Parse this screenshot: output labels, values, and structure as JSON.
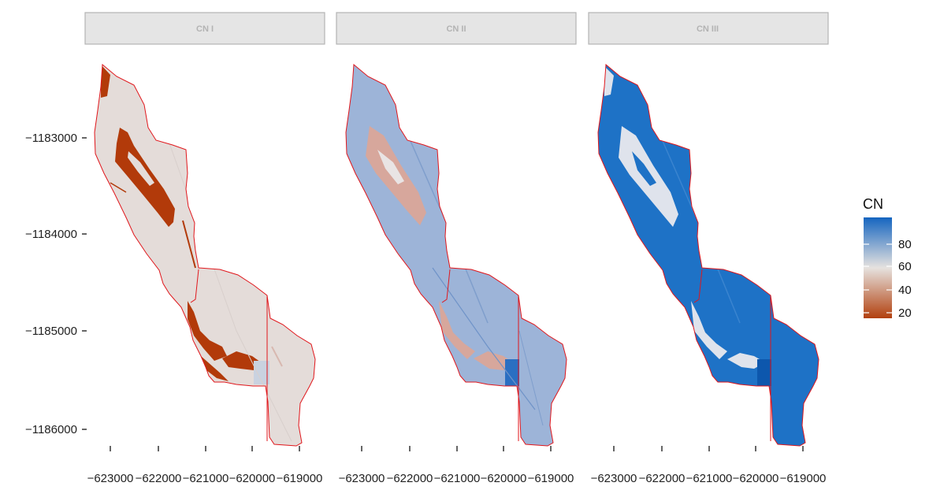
{
  "panels": [
    {
      "key": "cn1",
      "title": "CN I"
    },
    {
      "key": "cn2",
      "title": "CN II"
    },
    {
      "key": "cn3",
      "title": "CN III"
    }
  ],
  "y_axis_ticks": [
    "−1183000",
    "−1184000",
    "−1185000",
    "−1186000"
  ],
  "x_axis_ticks": [
    "−623000",
    "−622000",
    "−621000",
    "−620000",
    "−619000"
  ],
  "legend": {
    "title": "CN",
    "labels": [
      "80",
      "60",
      "40",
      "20"
    ],
    "colors": {
      "low": "#b2400e",
      "mid": "#e6e2df",
      "high": "#1565c0"
    }
  },
  "colors": {
    "boundary": "#e0161b",
    "strip_fill": "#e5e5e5",
    "strip_border": "#b3b3b3",
    "cn1_base": "#e4dcd9",
    "cn1_low": "#b23a0a",
    "cn2_base": "#9db4d8",
    "cn2_low": "#d7a79c",
    "cn2_high": "#2a6fc2",
    "cn3_base": "#1e72c6",
    "cn3_light": "#dfe3ec"
  }
}
